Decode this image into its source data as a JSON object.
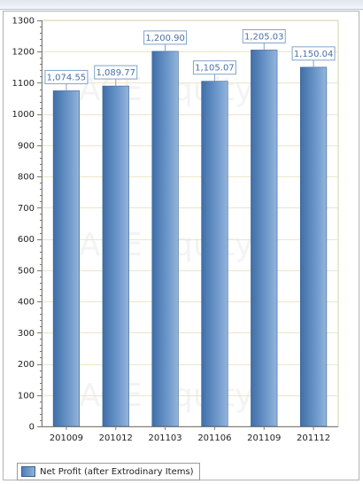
{
  "chart_data": {
    "type": "bar",
    "title": "",
    "xlabel": "",
    "ylabel": "",
    "categories": [
      "201009",
      "201012",
      "201103",
      "201106",
      "201109",
      "201112"
    ],
    "series": [
      {
        "name": "Net Profit (after Extrodinary Items)",
        "values": [
          1074.55,
          1089.77,
          1200.9,
          1105.07,
          1205.03,
          1150.04
        ],
        "data_labels": [
          "1,074.55",
          "1,089.77",
          "1,200.90",
          "1,105.07",
          "1,205.03",
          "1,150.04"
        ]
      }
    ],
    "ylim": [
      0,
      1300
    ],
    "yticks": [
      0,
      100,
      200,
      300,
      400,
      500,
      600,
      700,
      800,
      900,
      1000,
      1100,
      1200,
      1300
    ],
    "grid": true,
    "legend_position": "bottom-left",
    "watermark": "ACE Equity",
    "colors": {
      "bar_dark": "#3f6fa8",
      "bar_light": "#8fb2d9",
      "label_border": "#7fa3cc",
      "label_text": "#4a6fa5",
      "grid": "#ede4c8"
    }
  }
}
